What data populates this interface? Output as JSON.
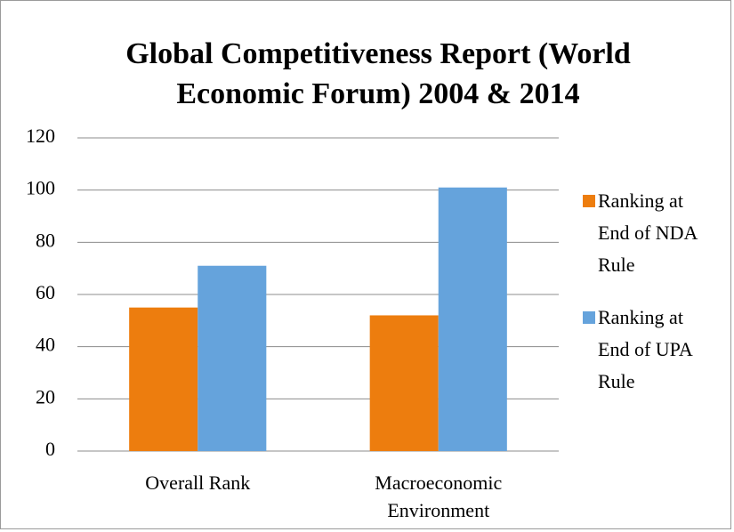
{
  "chart_data": {
    "type": "bar",
    "title": "Global Competitiveness Report (World Economic Forum) 2004 & 2014",
    "categories": [
      "Overall Rank",
      "Macroeconomic Environment"
    ],
    "series": [
      {
        "name": "Ranking at End of NDA Rule",
        "color": "#ed7d0e",
        "values": [
          55,
          52
        ]
      },
      {
        "name": "Ranking at End of UPA Rule",
        "color": "#65a3dc",
        "values": [
          71,
          101
        ]
      }
    ],
    "ylim": [
      0,
      120
    ],
    "yticks": [
      0,
      20,
      40,
      60,
      80,
      100,
      120
    ],
    "grid": true,
    "legend": "right"
  }
}
